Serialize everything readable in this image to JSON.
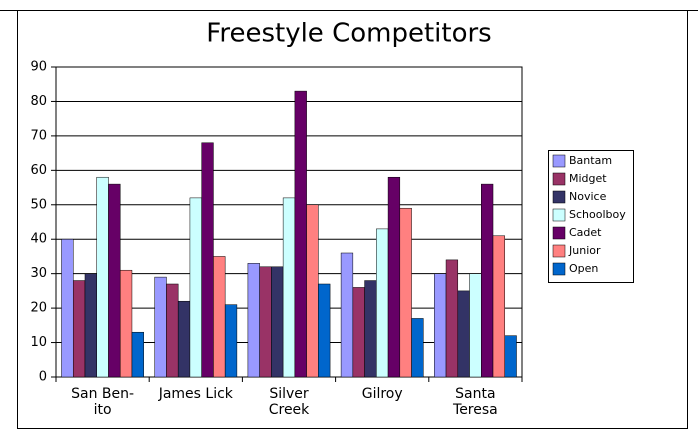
{
  "chart_data": {
    "type": "bar",
    "title": "Freestyle Competitors",
    "categories": [
      "San Ben-\nito",
      "James Lick",
      "Silver\nCreek",
      "Gilroy",
      "Santa\nTeresa"
    ],
    "series": [
      {
        "name": "Bantam",
        "color": "#9999ff",
        "values": [
          40,
          29,
          33,
          36,
          30
        ]
      },
      {
        "name": "Midget",
        "color": "#993366",
        "values": [
          28,
          27,
          32,
          26,
          34
        ]
      },
      {
        "name": "Novice",
        "color": "#333366",
        "values": [
          30,
          22,
          32,
          28,
          25
        ]
      },
      {
        "name": "Schoolboy",
        "color": "#ccffff",
        "values": [
          58,
          52,
          52,
          43,
          30
        ]
      },
      {
        "name": "Cadet",
        "color": "#660066",
        "values": [
          56,
          68,
          83,
          58,
          56
        ]
      },
      {
        "name": "Junior",
        "color": "#ff8080",
        "values": [
          31,
          35,
          50,
          49,
          41
        ]
      },
      {
        "name": "Open",
        "color": "#0066cc",
        "values": [
          13,
          21,
          27,
          17,
          12
        ]
      }
    ],
    "ylim": [
      0,
      90
    ],
    "yticks": [
      0,
      10,
      20,
      30,
      40,
      50,
      60,
      70,
      80,
      90
    ],
    "grid": true,
    "legend": "right"
  }
}
